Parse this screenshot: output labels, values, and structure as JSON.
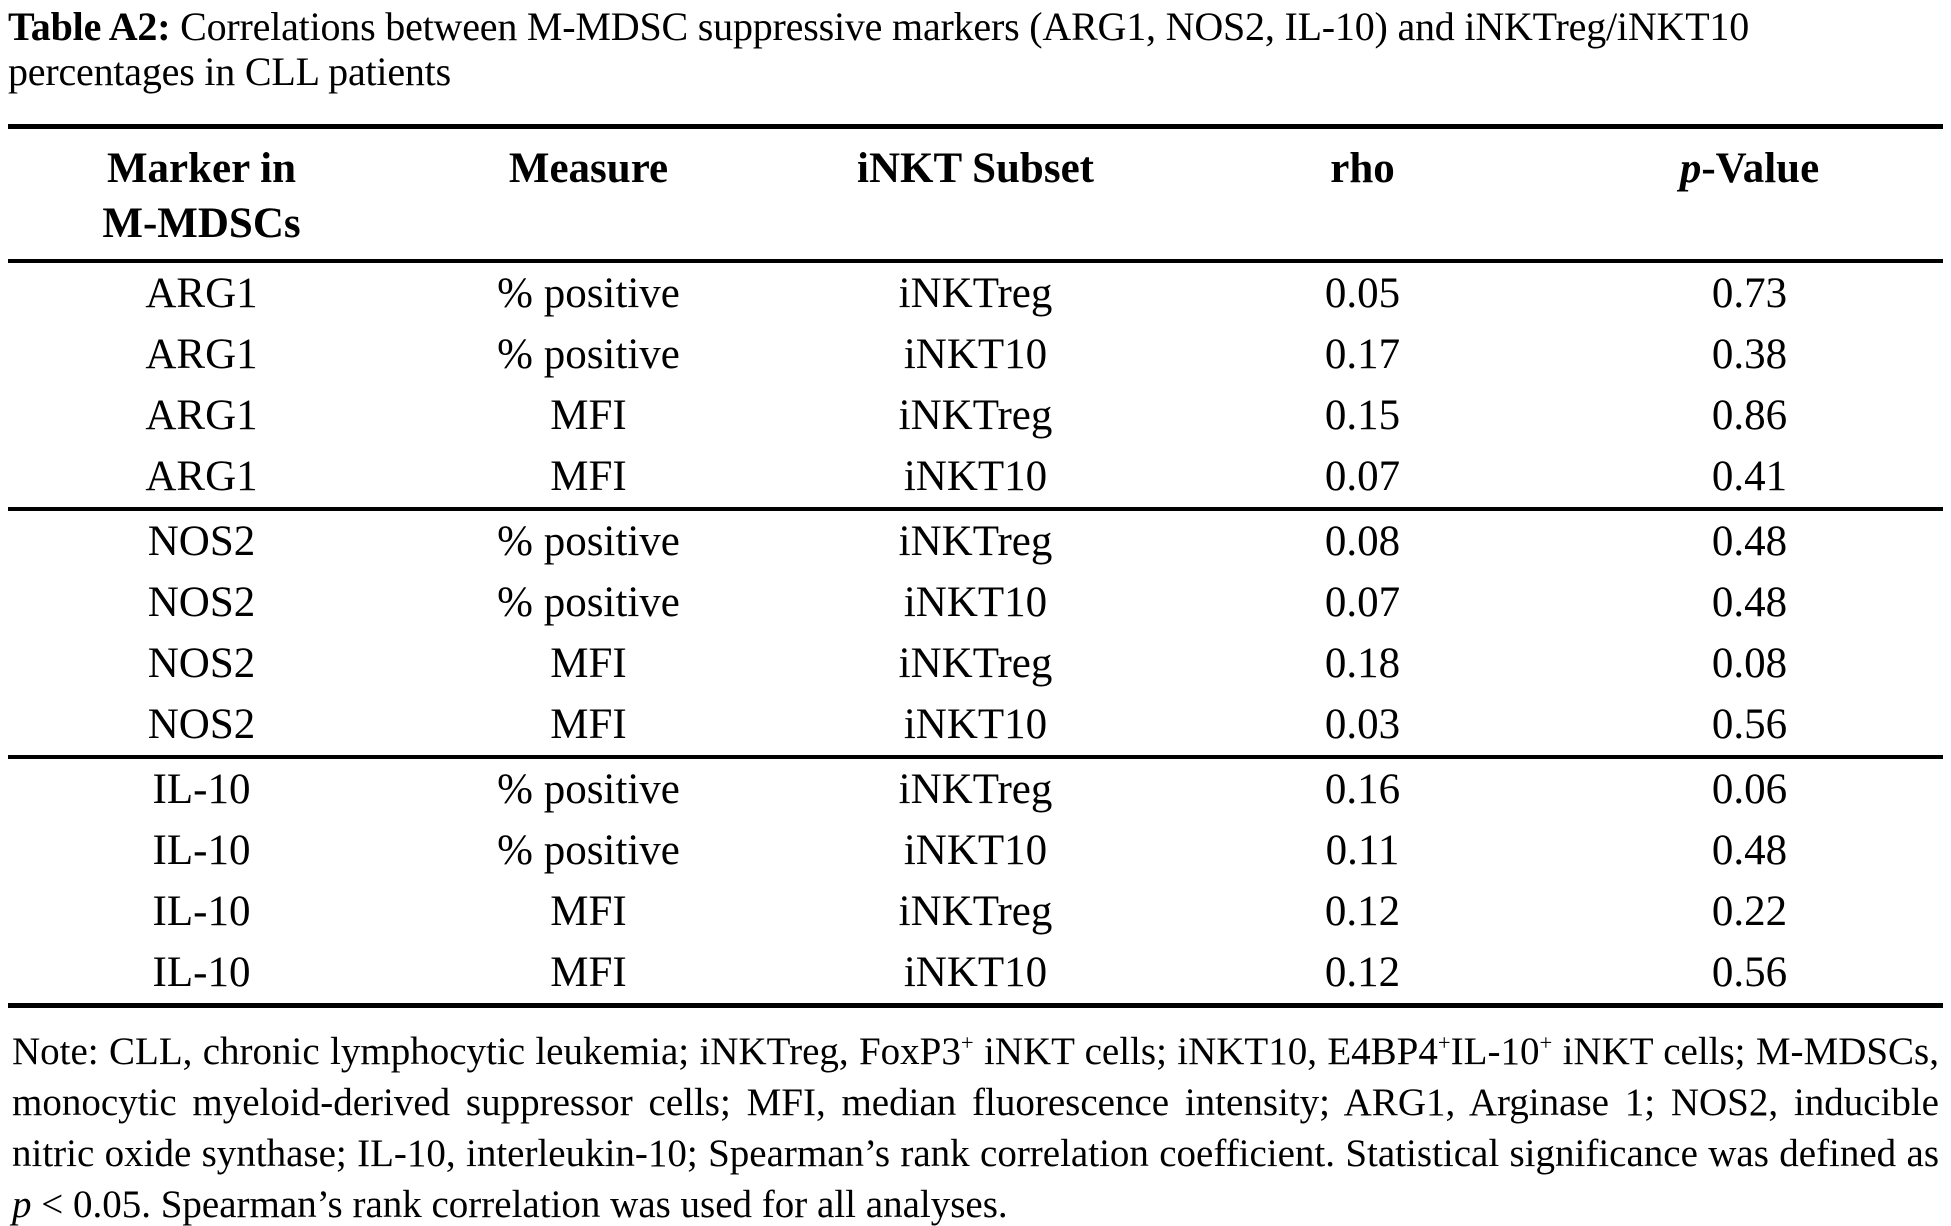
{
  "title": {
    "label": "Table A2:",
    "text": " Correlations between M-MDSC suppressive markers (ARG1, NOS2, IL-10) and iNKTreg/iNKT10 percentages in CLL patients"
  },
  "table": {
    "header": {
      "col1_line1": "Marker in",
      "col1_line2": "M-MDSCs",
      "col2": "Measure",
      "col3": "iNKT Subset",
      "col4": "rho",
      "col5_italic": "p",
      "col5_rest": "-Value"
    },
    "rows": [
      [
        "ARG1",
        "% positive",
        "iNKTreg",
        "0.05",
        "0.73"
      ],
      [
        "ARG1",
        "% positive",
        "iNKT10",
        "0.17",
        "0.38"
      ],
      [
        "ARG1",
        "MFI",
        "iNKTreg",
        "0.15",
        "0.86"
      ],
      [
        "ARG1",
        "MFI",
        "iNKT10",
        "0.07",
        "0.41"
      ],
      [
        "NOS2",
        "% positive",
        "iNKTreg",
        "0.08",
        "0.48"
      ],
      [
        "NOS2",
        "% positive",
        "iNKT10",
        "0.07",
        "0.48"
      ],
      [
        "NOS2",
        "MFI",
        "iNKTreg",
        "0.18",
        "0.08"
      ],
      [
        "NOS2",
        "MFI",
        "iNKT10",
        "0.03",
        "0.56"
      ],
      [
        "IL-10",
        "% positive",
        "iNKTreg",
        "0.16",
        "0.06"
      ],
      [
        "IL-10",
        "% positive",
        "iNKT10",
        "0.11",
        "0.48"
      ],
      [
        "IL-10",
        "MFI",
        "iNKTreg",
        "0.12",
        "0.22"
      ],
      [
        "IL-10",
        "MFI",
        "iNKT10",
        "0.12",
        "0.56"
      ]
    ],
    "rows_per_group": 4
  },
  "note": {
    "segments": [
      {
        "text": "Note: CLL, chronic lymphocytic leukemia; iNKTreg, FoxP3",
        "style": "normal"
      },
      {
        "text": "+",
        "style": "sup"
      },
      {
        "text": " iNKT cells; iNKT10, E4BP4",
        "style": "normal"
      },
      {
        "text": "+",
        "style": "sup"
      },
      {
        "text": "IL-10",
        "style": "normal"
      },
      {
        "text": "+",
        "style": "sup"
      },
      {
        "text": " iNKT cells; M-MDSCs, monocytic myeloid-derived suppressor cells; MFI, median fluorescence intensity; ARG1, Arginase 1; NOS2, inducible nitric oxide synthase; IL-10, interleukin-10; Spearman’s rank correlation coefficient. Statistical significance was defined as ",
        "style": "normal"
      },
      {
        "text": "p",
        "style": "italic"
      },
      {
        "text": " < 0.05. Spearman’s rank correlation was used for all analyses.",
        "style": "normal"
      }
    ]
  }
}
